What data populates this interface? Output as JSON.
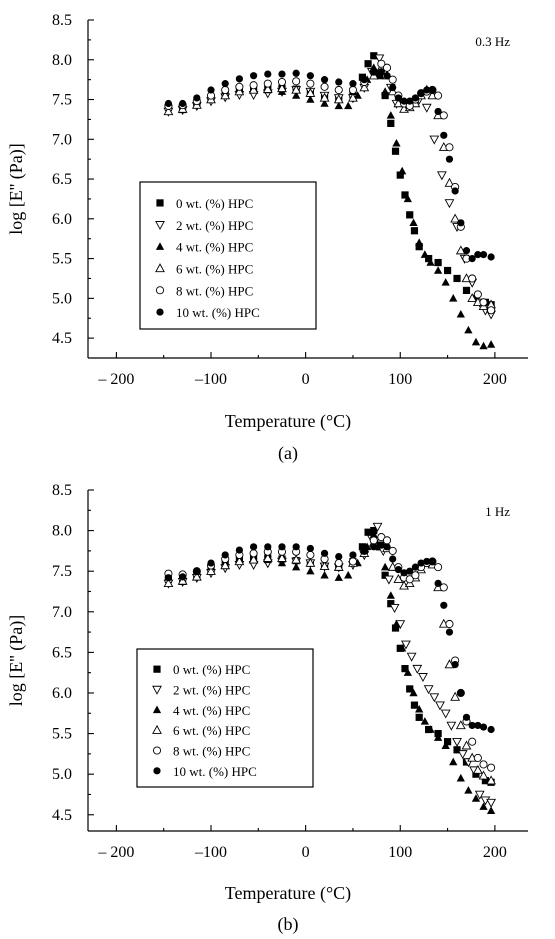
{
  "chart_data": [
    {
      "type": "scatter",
      "panel_label": "(a)",
      "annotation": "0.3 Hz",
      "xlabel": "Temperature (°C)",
      "ylabel": "log [E'' (Pa)]",
      "xlim": [
        -230,
        235
      ],
      "ylim": [
        4.25,
        8.5
      ],
      "xticks": [
        -200,
        -100,
        0,
        100,
        200
      ],
      "xtick_labels": [
        "– 200",
        "–100",
        "0",
        "100",
        "200"
      ],
      "yticks": [
        4.5,
        5.0,
        5.5,
        6.0,
        6.5,
        7.0,
        7.5,
        8.0,
        8.5
      ],
      "ytick_labels": [
        "4.5",
        "5.0",
        "5.5",
        "6.0",
        "6.5",
        "7.0",
        "7.5",
        "8.0",
        "8.5"
      ],
      "legend_position": "center-left",
      "series": [
        {
          "name": "0 wt. (%) HPC",
          "marker": "square-filled",
          "x": [
            -145,
            -130,
            -115,
            -100,
            -85,
            -70,
            -55,
            -40,
            -25,
            -10,
            5,
            20,
            35,
            50,
            60,
            66,
            72,
            78,
            84,
            90,
            95,
            100,
            105,
            110,
            115,
            120,
            130,
            140,
            150,
            160,
            170,
            180,
            190,
            196
          ],
          "y": [
            7.4,
            7.41,
            7.45,
            7.52,
            7.58,
            7.62,
            7.63,
            7.64,
            7.64,
            7.63,
            7.58,
            7.53,
            7.5,
            7.56,
            7.78,
            7.95,
            8.05,
            7.8,
            7.55,
            7.2,
            6.85,
            6.55,
            6.3,
            6.05,
            5.85,
            5.65,
            5.5,
            5.45,
            5.35,
            5.25,
            5.1,
            5.0,
            4.95,
            4.92
          ]
        },
        {
          "name": "2 wt. (%) HPC",
          "marker": "triangle-down-open",
          "x": [
            -145,
            -130,
            -115,
            -100,
            -85,
            -70,
            -55,
            -40,
            -25,
            -10,
            5,
            20,
            35,
            50,
            62,
            70,
            78,
            84,
            90,
            96,
            104,
            112,
            120,
            128,
            136,
            144,
            152,
            160,
            168,
            176,
            184,
            190,
            196
          ],
          "y": [
            7.35,
            7.37,
            7.42,
            7.48,
            7.53,
            7.56,
            7.56,
            7.58,
            7.6,
            7.62,
            7.6,
            7.55,
            7.52,
            7.52,
            7.65,
            7.85,
            8.02,
            7.85,
            7.65,
            7.45,
            7.42,
            7.45,
            7.5,
            7.4,
            7.0,
            6.55,
            6.2,
            5.9,
            5.5,
            5.2,
            4.95,
            4.85,
            4.8
          ]
        },
        {
          "name": "4 wt. (%) HPC",
          "marker": "triangle-up-filled",
          "x": [
            -145,
            -130,
            -115,
            -100,
            -85,
            -70,
            -55,
            -40,
            -25,
            -10,
            5,
            20,
            35,
            45,
            55,
            65,
            72,
            78,
            84,
            90,
            96,
            102,
            108,
            114,
            120,
            126,
            132,
            140,
            148,
            156,
            164,
            172,
            180,
            188,
            196
          ],
          "y": [
            7.35,
            7.37,
            7.43,
            7.5,
            7.56,
            7.6,
            7.62,
            7.62,
            7.6,
            7.55,
            7.5,
            7.45,
            7.42,
            7.42,
            7.55,
            7.75,
            7.9,
            7.85,
            7.6,
            7.3,
            6.95,
            6.6,
            6.25,
            5.95,
            5.7,
            5.55,
            5.45,
            5.35,
            5.2,
            5.0,
            4.8,
            4.6,
            4.45,
            4.4,
            4.42
          ]
        },
        {
          "name": "6 wt. (%) HPC",
          "marker": "triangle-up-open",
          "x": [
            -145,
            -130,
            -115,
            -100,
            -85,
            -70,
            -55,
            -40,
            -25,
            -10,
            5,
            20,
            35,
            50,
            62,
            72,
            80,
            86,
            92,
            98,
            104,
            110,
            116,
            122,
            128,
            134,
            140,
            146,
            152,
            158,
            164,
            170,
            176,
            182,
            188,
            196
          ],
          "y": [
            7.35,
            7.38,
            7.43,
            7.5,
            7.55,
            7.6,
            7.62,
            7.63,
            7.64,
            7.62,
            7.58,
            7.52,
            7.5,
            7.52,
            7.65,
            7.8,
            7.9,
            7.8,
            7.6,
            7.45,
            7.38,
            7.4,
            7.45,
            7.55,
            7.62,
            7.55,
            7.3,
            6.9,
            6.45,
            6.0,
            5.6,
            5.25,
            5.0,
            4.95,
            4.9,
            4.92
          ]
        },
        {
          "name": "8 wt. (%) HPC",
          "marker": "circle-open",
          "x": [
            -145,
            -130,
            -115,
            -100,
            -85,
            -70,
            -55,
            -40,
            -25,
            -10,
            5,
            20,
            35,
            50,
            62,
            72,
            80,
            86,
            92,
            98,
            104,
            110,
            116,
            122,
            128,
            134,
            140,
            146,
            152,
            158,
            164,
            170,
            176,
            182,
            188,
            196
          ],
          "y": [
            7.42,
            7.43,
            7.48,
            7.55,
            7.62,
            7.66,
            7.68,
            7.7,
            7.72,
            7.73,
            7.7,
            7.66,
            7.62,
            7.62,
            7.72,
            7.85,
            7.95,
            7.9,
            7.75,
            7.55,
            7.45,
            7.42,
            7.5,
            7.58,
            7.6,
            7.62,
            7.55,
            7.3,
            6.9,
            6.4,
            5.9,
            5.5,
            5.25,
            5.05,
            4.95,
            4.85
          ]
        },
        {
          "name": "10 wt. (%) HPC",
          "marker": "circle-filled",
          "x": [
            -145,
            -130,
            -115,
            -100,
            -85,
            -70,
            -55,
            -40,
            -25,
            -10,
            5,
            20,
            35,
            50,
            62,
            72,
            80,
            86,
            92,
            98,
            104,
            110,
            116,
            122,
            128,
            134,
            140,
            146,
            152,
            158,
            164,
            170,
            176,
            182,
            188,
            196
          ],
          "y": [
            7.45,
            7.45,
            7.52,
            7.62,
            7.7,
            7.76,
            7.8,
            7.82,
            7.82,
            7.83,
            7.8,
            7.75,
            7.72,
            7.7,
            7.75,
            7.85,
            7.85,
            7.8,
            7.65,
            7.52,
            7.48,
            7.48,
            7.52,
            7.58,
            7.62,
            7.62,
            7.35,
            7.05,
            6.75,
            6.35,
            5.95,
            5.6,
            5.5,
            5.55,
            5.55,
            5.52
          ]
        }
      ]
    },
    {
      "type": "scatter",
      "panel_label": "(b)",
      "annotation": "1 Hz",
      "xlabel": "Temperature (°C)",
      "ylabel": "log [E'' (Pa)]",
      "xlim": [
        -230,
        235
      ],
      "ylim": [
        4.3,
        8.5
      ],
      "xticks": [
        -200,
        -100,
        0,
        100,
        200
      ],
      "xtick_labels": [
        "– 200",
        "–100",
        "0",
        "100",
        "200"
      ],
      "yticks": [
        4.5,
        5.0,
        5.5,
        6.0,
        6.5,
        7.0,
        7.5,
        8.0,
        8.5
      ],
      "ytick_labels": [
        "4.5",
        "5.0",
        "5.5",
        "6.0",
        "6.5",
        "7.0",
        "7.5",
        "8.0",
        "8.5"
      ],
      "legend_position": "center-left",
      "series": [
        {
          "name": "0 wt. (%) HPC",
          "marker": "square-filled",
          "x": [
            -145,
            -130,
            -115,
            -100,
            -85,
            -70,
            -55,
            -40,
            -25,
            -10,
            5,
            20,
            35,
            50,
            60,
            66,
            72,
            78,
            84,
            90,
            95,
            100,
            105,
            110,
            115,
            120,
            130,
            140,
            150,
            160,
            170,
            180,
            190,
            196
          ],
          "y": [
            7.4,
            7.41,
            7.45,
            7.52,
            7.6,
            7.65,
            7.66,
            7.66,
            7.65,
            7.63,
            7.6,
            7.56,
            7.55,
            7.62,
            7.8,
            7.98,
            8.0,
            7.8,
            7.45,
            7.1,
            6.8,
            6.55,
            6.3,
            6.05,
            5.85,
            5.7,
            5.55,
            5.5,
            5.4,
            5.3,
            5.15,
            5.0,
            4.92,
            4.9
          ]
        },
        {
          "name": "2 wt. (%) HPC",
          "marker": "triangle-down-open",
          "x": [
            -145,
            -130,
            -115,
            -100,
            -85,
            -70,
            -55,
            -40,
            -25,
            -10,
            5,
            20,
            35,
            50,
            62,
            70,
            76,
            82,
            88,
            94,
            100,
            106,
            112,
            118,
            124,
            130,
            136,
            142,
            148,
            154,
            160,
            166,
            172,
            178,
            184,
            190,
            196
          ],
          "y": [
            7.35,
            7.37,
            7.42,
            7.48,
            7.54,
            7.58,
            7.58,
            7.6,
            7.62,
            7.62,
            7.6,
            7.56,
            7.55,
            7.58,
            7.7,
            7.9,
            8.05,
            7.75,
            7.4,
            7.05,
            6.85,
            6.6,
            6.45,
            6.3,
            6.2,
            6.05,
            5.95,
            5.85,
            5.75,
            5.6,
            5.4,
            5.25,
            5.15,
            5.05,
            4.75,
            4.68,
            4.65
          ]
        },
        {
          "name": "4 wt. (%) HPC",
          "marker": "triangle-up-filled",
          "x": [
            -145,
            -130,
            -115,
            -100,
            -85,
            -70,
            -55,
            -40,
            -25,
            -10,
            5,
            20,
            35,
            45,
            55,
            65,
            72,
            78,
            84,
            90,
            96,
            102,
            108,
            114,
            120,
            126,
            132,
            140,
            148,
            156,
            164,
            172,
            180,
            188,
            196
          ],
          "y": [
            7.35,
            7.37,
            7.43,
            7.5,
            7.58,
            7.63,
            7.65,
            7.64,
            7.6,
            7.55,
            7.5,
            7.45,
            7.42,
            7.45,
            7.6,
            7.8,
            7.95,
            7.85,
            7.55,
            7.2,
            6.85,
            6.55,
            6.25,
            6.0,
            5.8,
            5.65,
            5.55,
            5.45,
            5.35,
            5.15,
            4.95,
            4.8,
            4.7,
            4.6,
            4.55
          ]
        },
        {
          "name": "6 wt. (%) HPC",
          "marker": "triangle-up-open",
          "x": [
            -145,
            -130,
            -115,
            -100,
            -85,
            -70,
            -55,
            -40,
            -25,
            -10,
            5,
            20,
            35,
            50,
            62,
            72,
            80,
            86,
            92,
            98,
            104,
            110,
            116,
            122,
            128,
            134,
            140,
            146,
            152,
            158,
            164,
            170,
            176,
            182,
            188,
            196
          ],
          "y": [
            7.35,
            7.38,
            7.43,
            7.5,
            7.57,
            7.62,
            7.64,
            7.66,
            7.66,
            7.64,
            7.6,
            7.56,
            7.55,
            7.6,
            7.72,
            7.85,
            7.9,
            7.78,
            7.55,
            7.4,
            7.32,
            7.35,
            7.42,
            7.52,
            7.6,
            7.58,
            7.3,
            6.85,
            6.35,
            5.95,
            5.6,
            5.35,
            5.2,
            5.05,
            4.98,
            4.92
          ]
        },
        {
          "name": "8 wt. (%) HPC",
          "marker": "circle-open",
          "x": [
            -145,
            -130,
            -115,
            -100,
            -85,
            -70,
            -55,
            -40,
            -25,
            -10,
            5,
            20,
            35,
            50,
            62,
            72,
            80,
            86,
            92,
            98,
            104,
            110,
            116,
            122,
            128,
            134,
            140,
            146,
            152,
            158,
            164,
            170,
            176,
            182,
            188,
            196
          ],
          "y": [
            7.47,
            7.46,
            7.5,
            7.57,
            7.65,
            7.7,
            7.72,
            7.74,
            7.74,
            7.74,
            7.7,
            7.65,
            7.6,
            7.62,
            7.75,
            7.88,
            7.92,
            7.88,
            7.75,
            7.55,
            7.42,
            7.4,
            7.45,
            7.55,
            7.6,
            7.62,
            7.55,
            7.3,
            6.85,
            6.4,
            6.0,
            5.65,
            5.4,
            5.2,
            5.12,
            5.08
          ]
        },
        {
          "name": "10 wt. (%) HPC",
          "marker": "circle-filled",
          "x": [
            -145,
            -130,
            -115,
            -100,
            -85,
            -70,
            -55,
            -40,
            -25,
            -10,
            5,
            20,
            35,
            50,
            62,
            72,
            80,
            86,
            92,
            98,
            104,
            110,
            116,
            122,
            128,
            134,
            140,
            146,
            152,
            158,
            164,
            170,
            176,
            182,
            188,
            196
          ],
          "y": [
            7.42,
            7.43,
            7.5,
            7.6,
            7.7,
            7.76,
            7.8,
            7.8,
            7.8,
            7.8,
            7.78,
            7.72,
            7.68,
            7.7,
            7.75,
            7.8,
            7.82,
            7.8,
            7.65,
            7.52,
            7.48,
            7.5,
            7.55,
            7.6,
            7.62,
            7.62,
            7.35,
            7.08,
            6.75,
            6.35,
            6.0,
            5.7,
            5.6,
            5.6,
            5.58,
            5.55
          ]
        }
      ]
    }
  ]
}
